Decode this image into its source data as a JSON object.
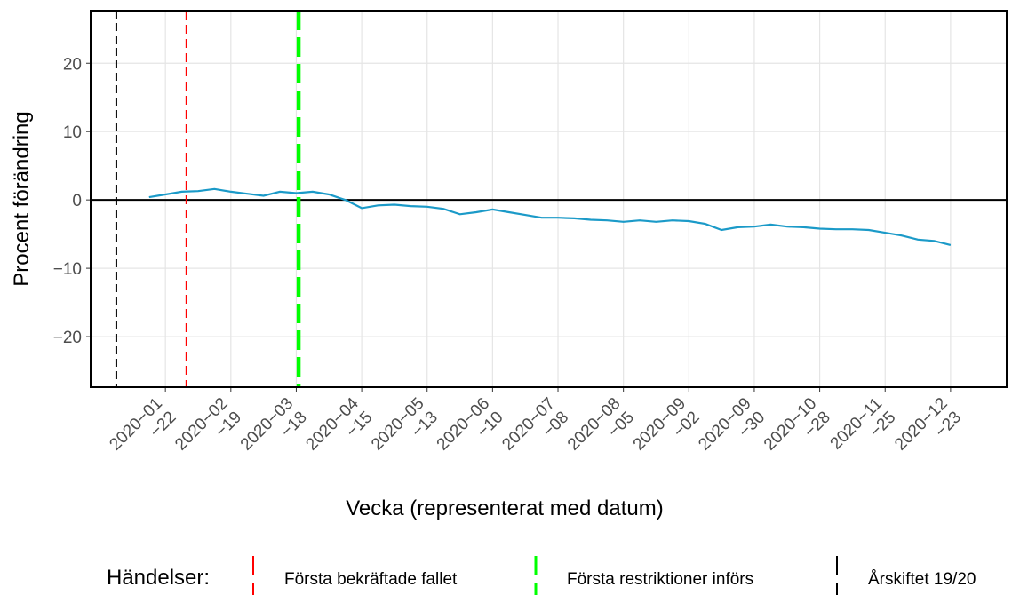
{
  "chart_data": {
    "type": "line",
    "xlabel": "Vecka (representerat med datum)",
    "ylabel": "Procent förändring",
    "legend_title": "Händelser:",
    "xlim": [
      "2019-12-21",
      "2021-01-16"
    ],
    "ylim": [
      -27.4,
      27.7
    ],
    "yticks": [
      {
        "value": -20,
        "label": "−20"
      },
      {
        "value": -10,
        "label": "−10"
      },
      0,
      10,
      20
    ],
    "xticks": [
      {
        "value": "2020-01-22",
        "label": "2020−01\n−22"
      },
      {
        "value": "2020-02-19",
        "label": "2020−02\n−19"
      },
      {
        "value": "2020-03-18",
        "label": "2020−03\n−18"
      },
      {
        "value": "2020-04-15",
        "label": "2020−04\n−15"
      },
      {
        "value": "2020-05-13",
        "label": "2020−05\n−13"
      },
      {
        "value": "2020-06-10",
        "label": "2020−06\n−10"
      },
      {
        "value": "2020-07-08",
        "label": "2020−07\n−08"
      },
      {
        "value": "2020-08-05",
        "label": "2020−08\n−05"
      },
      {
        "value": "2020-09-02",
        "label": "2020−09\n−02"
      },
      {
        "value": "2020-09-30",
        "label": "2020−09\n−30"
      },
      {
        "value": "2020-10-28",
        "label": "2020−10\n−28"
      },
      {
        "value": "2020-11-25",
        "label": "2020−11\n−25"
      },
      {
        "value": "2020-12-23",
        "label": "2020−12\n−23"
      }
    ],
    "grid": true,
    "start": "2020-01-15",
    "step_days": 7,
    "series": [
      {
        "color": "#1b9ac8",
        "values": [
          0.4,
          0.8,
          1.2,
          1.3,
          1.6,
          1.2,
          0.9,
          0.6,
          1.2,
          1.0,
          1.2,
          0.8,
          0.0,
          -1.2,
          -0.8,
          -0.7,
          -0.9,
          -1.0,
          -1.3,
          -2.1,
          -1.8,
          -1.4,
          -1.8,
          -2.2,
          -2.6,
          -2.6,
          -2.7,
          -2.9,
          -3.0,
          -3.2,
          -3.0,
          -3.2,
          -3.0,
          -3.1,
          -3.5,
          -4.4,
          -4.0,
          -3.9,
          -3.6,
          -3.9,
          -4.0,
          -4.2,
          -4.3,
          -4.3,
          -4.4,
          -4.8,
          -5.2,
          -5.8,
          -6.0,
          -6.6
        ]
      }
    ],
    "events": [
      {
        "name": "Första bekräftade fallet",
        "color": "#ff0000",
        "x": "2020-01-31"
      },
      {
        "name": "Första restriktioner införs",
        "color": "#00ff00",
        "x": "2020-03-19"
      },
      {
        "name": "Årskiftet 19/20",
        "color": "#000000",
        "x": "2020-01-01"
      }
    ]
  }
}
